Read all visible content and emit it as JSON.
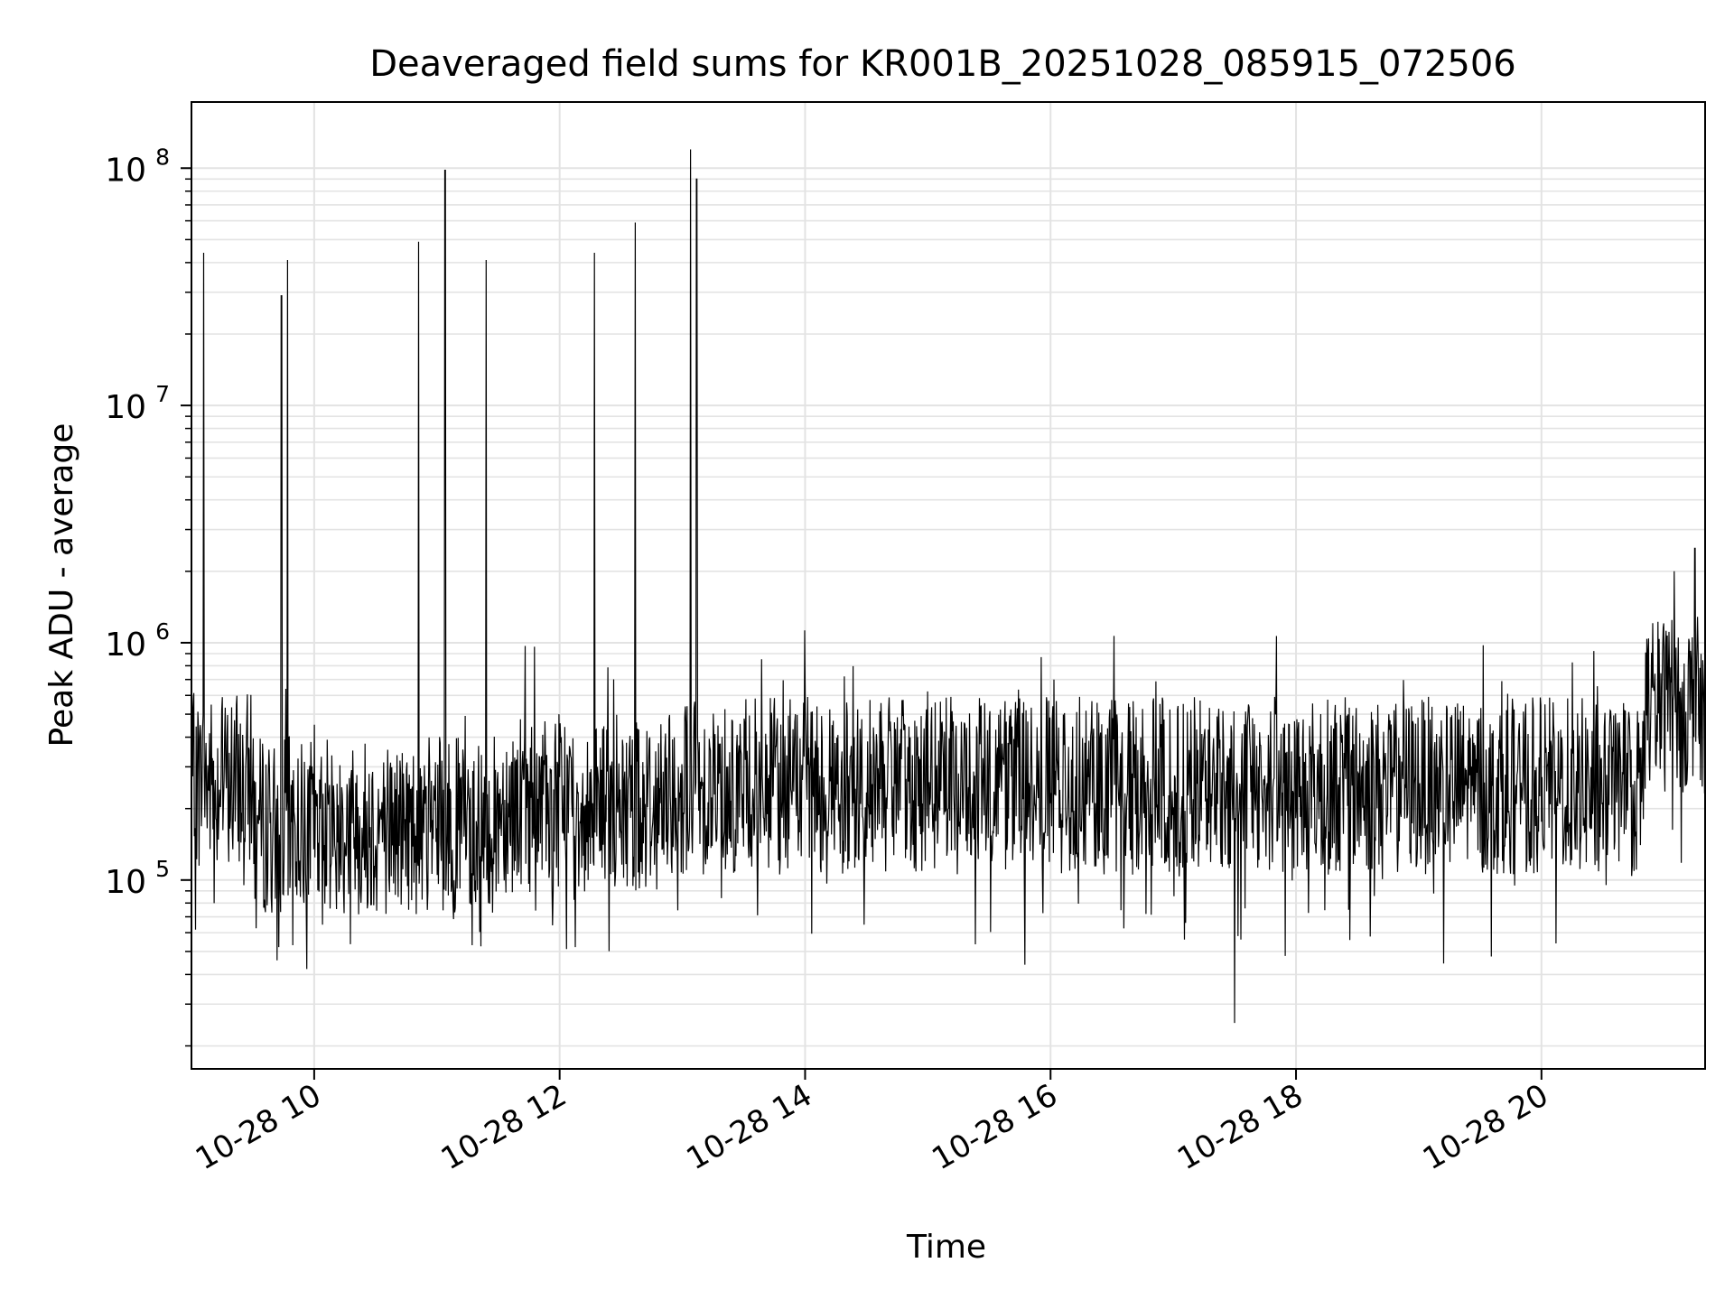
{
  "chart_data": {
    "type": "line",
    "title": "Deaveraged field sums for KR001B_20251028_085915_072506",
    "xlabel": "Time",
    "ylabel": "Peak ADU - average",
    "x_scale": "time",
    "y_scale": "log",
    "xlim": [
      "2025-10-28 09:00",
      "2025-10-28 21:20"
    ],
    "ylim": [
      16000,
      190000000
    ],
    "grid": true,
    "line_color": "#000000",
    "x_ticks": [
      {
        "value": "2025-10-28 10:00",
        "label": "10-28 10"
      },
      {
        "value": "2025-10-28 12:00",
        "label": "10-28 12"
      },
      {
        "value": "2025-10-28 14:00",
        "label": "10-28 14"
      },
      {
        "value": "2025-10-28 16:00",
        "label": "10-28 16"
      },
      {
        "value": "2025-10-28 18:00",
        "label": "10-28 18"
      },
      {
        "value": "2025-10-28 20:00",
        "label": "10-28 20"
      }
    ],
    "y_ticks": [
      {
        "value": 100000,
        "base": "10",
        "exp": "5"
      },
      {
        "value": 1000000,
        "base": "10",
        "exp": "6"
      },
      {
        "value": 10000000,
        "base": "10",
        "exp": "7"
      },
      {
        "value": 100000000,
        "base": "10",
        "exp": "8"
      }
    ],
    "baseline_segments": [
      {
        "t0": "2025-10-28 09:00",
        "t1": "2025-10-28 09:30",
        "median": 260000
      },
      {
        "t0": "2025-10-28 09:30",
        "t1": "2025-10-28 11:30",
        "median": 170000
      },
      {
        "t0": "2025-10-28 11:30",
        "t1": "2025-10-28 13:00",
        "median": 210000
      },
      {
        "t0": "2025-10-28 13:00",
        "t1": "2025-10-28 20:50",
        "median": 250000
      },
      {
        "t0": "2025-10-28 20:50",
        "t1": "2025-10-28 21:20",
        "median": 550000
      }
    ],
    "spikes": [
      {
        "t": "2025-10-28 09:06",
        "value": 44000000
      },
      {
        "t": "2025-10-28 09:44",
        "value": 29000000
      },
      {
        "t": "2025-10-28 09:47",
        "value": 41000000
      },
      {
        "t": "2025-10-28 10:51",
        "value": 49000000
      },
      {
        "t": "2025-10-28 11:04",
        "value": 98000000
      },
      {
        "t": "2025-10-28 11:24",
        "value": 41000000
      },
      {
        "t": "2025-10-28 12:17",
        "value": 44000000
      },
      {
        "t": "2025-10-28 12:37",
        "value": 59000000
      },
      {
        "t": "2025-10-28 13:04",
        "value": 120000000
      },
      {
        "t": "2025-10-28 13:07",
        "value": 90000000
      },
      {
        "t": "2025-10-28 21:15",
        "value": 2500000
      },
      {
        "t": "2025-10-28 21:05",
        "value": 2000000
      }
    ],
    "minimum": {
      "t": "2025-10-28 17:30",
      "value": 25000
    }
  }
}
